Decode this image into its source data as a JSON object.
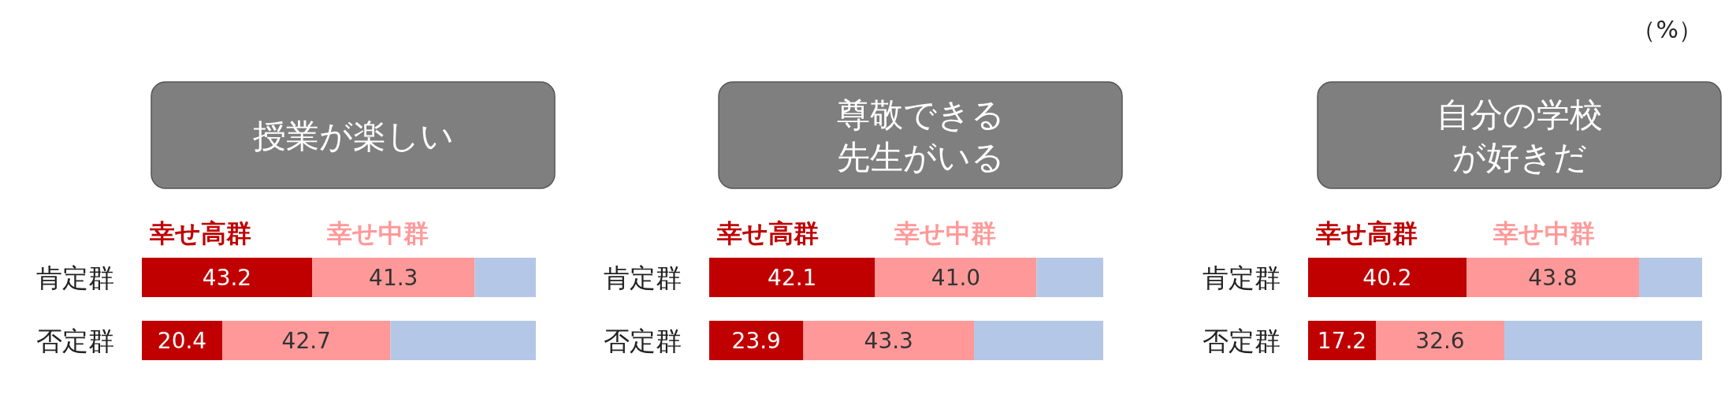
{
  "chart_data": [
    {
      "type": "bar",
      "orientation": "horizontal",
      "stacked": true,
      "title": "授業が楽しい",
      "categories": [
        "肯定群",
        "否定群"
      ],
      "xlim": [
        0,
        100
      ],
      "tick_labels": "y",
      "legend": "top left",
      "grid": false,
      "series": [
        {
          "name": "幸せ高群",
          "color": "#c00000",
          "values": [
            43.2,
            20.4
          ],
          "value_labels": [
            "43.2",
            "20.4"
          ]
        },
        {
          "name": "幸せ中群",
          "color": "#ff9999",
          "values": [
            41.3,
            42.7
          ],
          "value_labels": [
            "41.3",
            "42.7"
          ]
        },
        {
          "color": "#b4c7e7",
          "values": [
            15.5,
            36.9
          ]
        }
      ]
    },
    {
      "type": "bar",
      "orientation": "horizontal",
      "stacked": true,
      "title": "尊敬できる先生がいる",
      "categories": [
        "肯定群",
        "否定群"
      ],
      "xlim": [
        0,
        100
      ],
      "tick_labels": "y",
      "legend": "top left",
      "grid": false,
      "series": [
        {
          "name": "幸せ高群",
          "color": "#c00000",
          "values": [
            42.1,
            23.9
          ],
          "value_labels": [
            "42.1",
            "23.9"
          ]
        },
        {
          "name": "幸せ中群",
          "color": "#ff9999",
          "values": [
            41.0,
            43.3
          ],
          "value_labels": [
            "41.0",
            "43.3"
          ]
        },
        {
          "color": "#b4c7e7",
          "values": [
            16.9,
            32.8
          ]
        }
      ]
    },
    {
      "type": "bar",
      "orientation": "horizontal",
      "stacked": true,
      "title": "自分の学校が好きだ",
      "categories": [
        "肯定群",
        "否定群"
      ],
      "xlim": [
        0,
        100
      ],
      "tick_labels": "y",
      "legend": "top left",
      "grid": false,
      "annotations": [
        "（%）"
      ],
      "series": [
        {
          "name": "幸せ高群",
          "color": "#c00000",
          "values": [
            40.2,
            17.2
          ],
          "value_labels": [
            "40.2",
            "17.2"
          ]
        },
        {
          "name": "幸せ中群",
          "color": "#ff9999",
          "values": [
            43.8,
            32.6
          ],
          "value_labels": [
            "43.8",
            "32.6"
          ]
        },
        {
          "color": "#b4c7e7",
          "values": [
            16.0,
            50.2
          ]
        }
      ]
    }
  ]
}
